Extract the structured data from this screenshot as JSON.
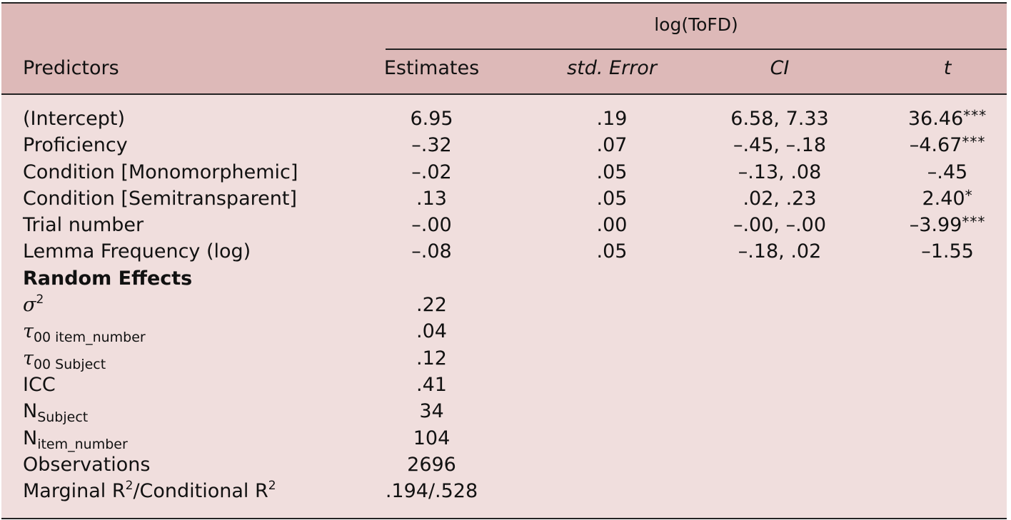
{
  "header": {
    "group_title": "log(ToFD)",
    "col_predictors": "Predictors",
    "col_estimates": "Estimates",
    "col_std_error": "std. Error",
    "col_ci": "CI",
    "col_t": "t"
  },
  "fixed_rows": [
    {
      "predictor": "(Intercept)",
      "estimate": "6.95",
      "se": ".19",
      "ci": "6.58, 7.33",
      "t": "36.46",
      "stars": "***"
    },
    {
      "predictor": "Proficiency",
      "estimate": "–.32",
      "se": ".07",
      "ci": "–.45, –.18",
      "t": "–4.67",
      "stars": "***"
    },
    {
      "predictor": "Condition [Monomorphemic]",
      "estimate": "–.02",
      "se": ".05",
      "ci": "–.13, .08",
      "t": "–.45",
      "stars": ""
    },
    {
      "predictor": "Condition [Semitransparent]",
      "estimate": ".13",
      "se": ".05",
      "ci": ".02, .23",
      "t": "2.40",
      "stars": "*"
    },
    {
      "predictor": "Trial number",
      "estimate": "–.00",
      "se": ".00",
      "ci": "–.00, –.00",
      "t": "–3.99",
      "stars": "***"
    },
    {
      "predictor": "Lemma Frequency (log)",
      "estimate": "–.08",
      "se": ".05",
      "ci": "–.18, .02",
      "t": "–1.55",
      "stars": ""
    }
  ],
  "random_effects": {
    "title": "Random Effects",
    "sigma2_symbol": "σ",
    "sigma2_sup": "2",
    "sigma2_value": ".22",
    "tau_symbol": "τ",
    "tau_item_sub": "00 item_number",
    "tau_item_value": ".04",
    "tau_subject_sub": "00 Subject",
    "tau_subject_value": ".12",
    "icc_label": "ICC",
    "icc_value": ".41",
    "n_letter": "N",
    "n_subject_sub": "Subject",
    "n_subject_value": "34",
    "n_item_sub": "item_number",
    "n_item_value": "104",
    "observations_label": "Observations",
    "observations_value": "2696",
    "r2_label_a": "Marginal R",
    "r2_sup_a": "2",
    "r2_label_b": "/Conditional R",
    "r2_sup_b": "2",
    "r2_value": ".194/.528"
  },
  "colors": {
    "header_bg": "#ddb9b8",
    "body_bg": "#f0dedd",
    "rule": "#222222"
  }
}
